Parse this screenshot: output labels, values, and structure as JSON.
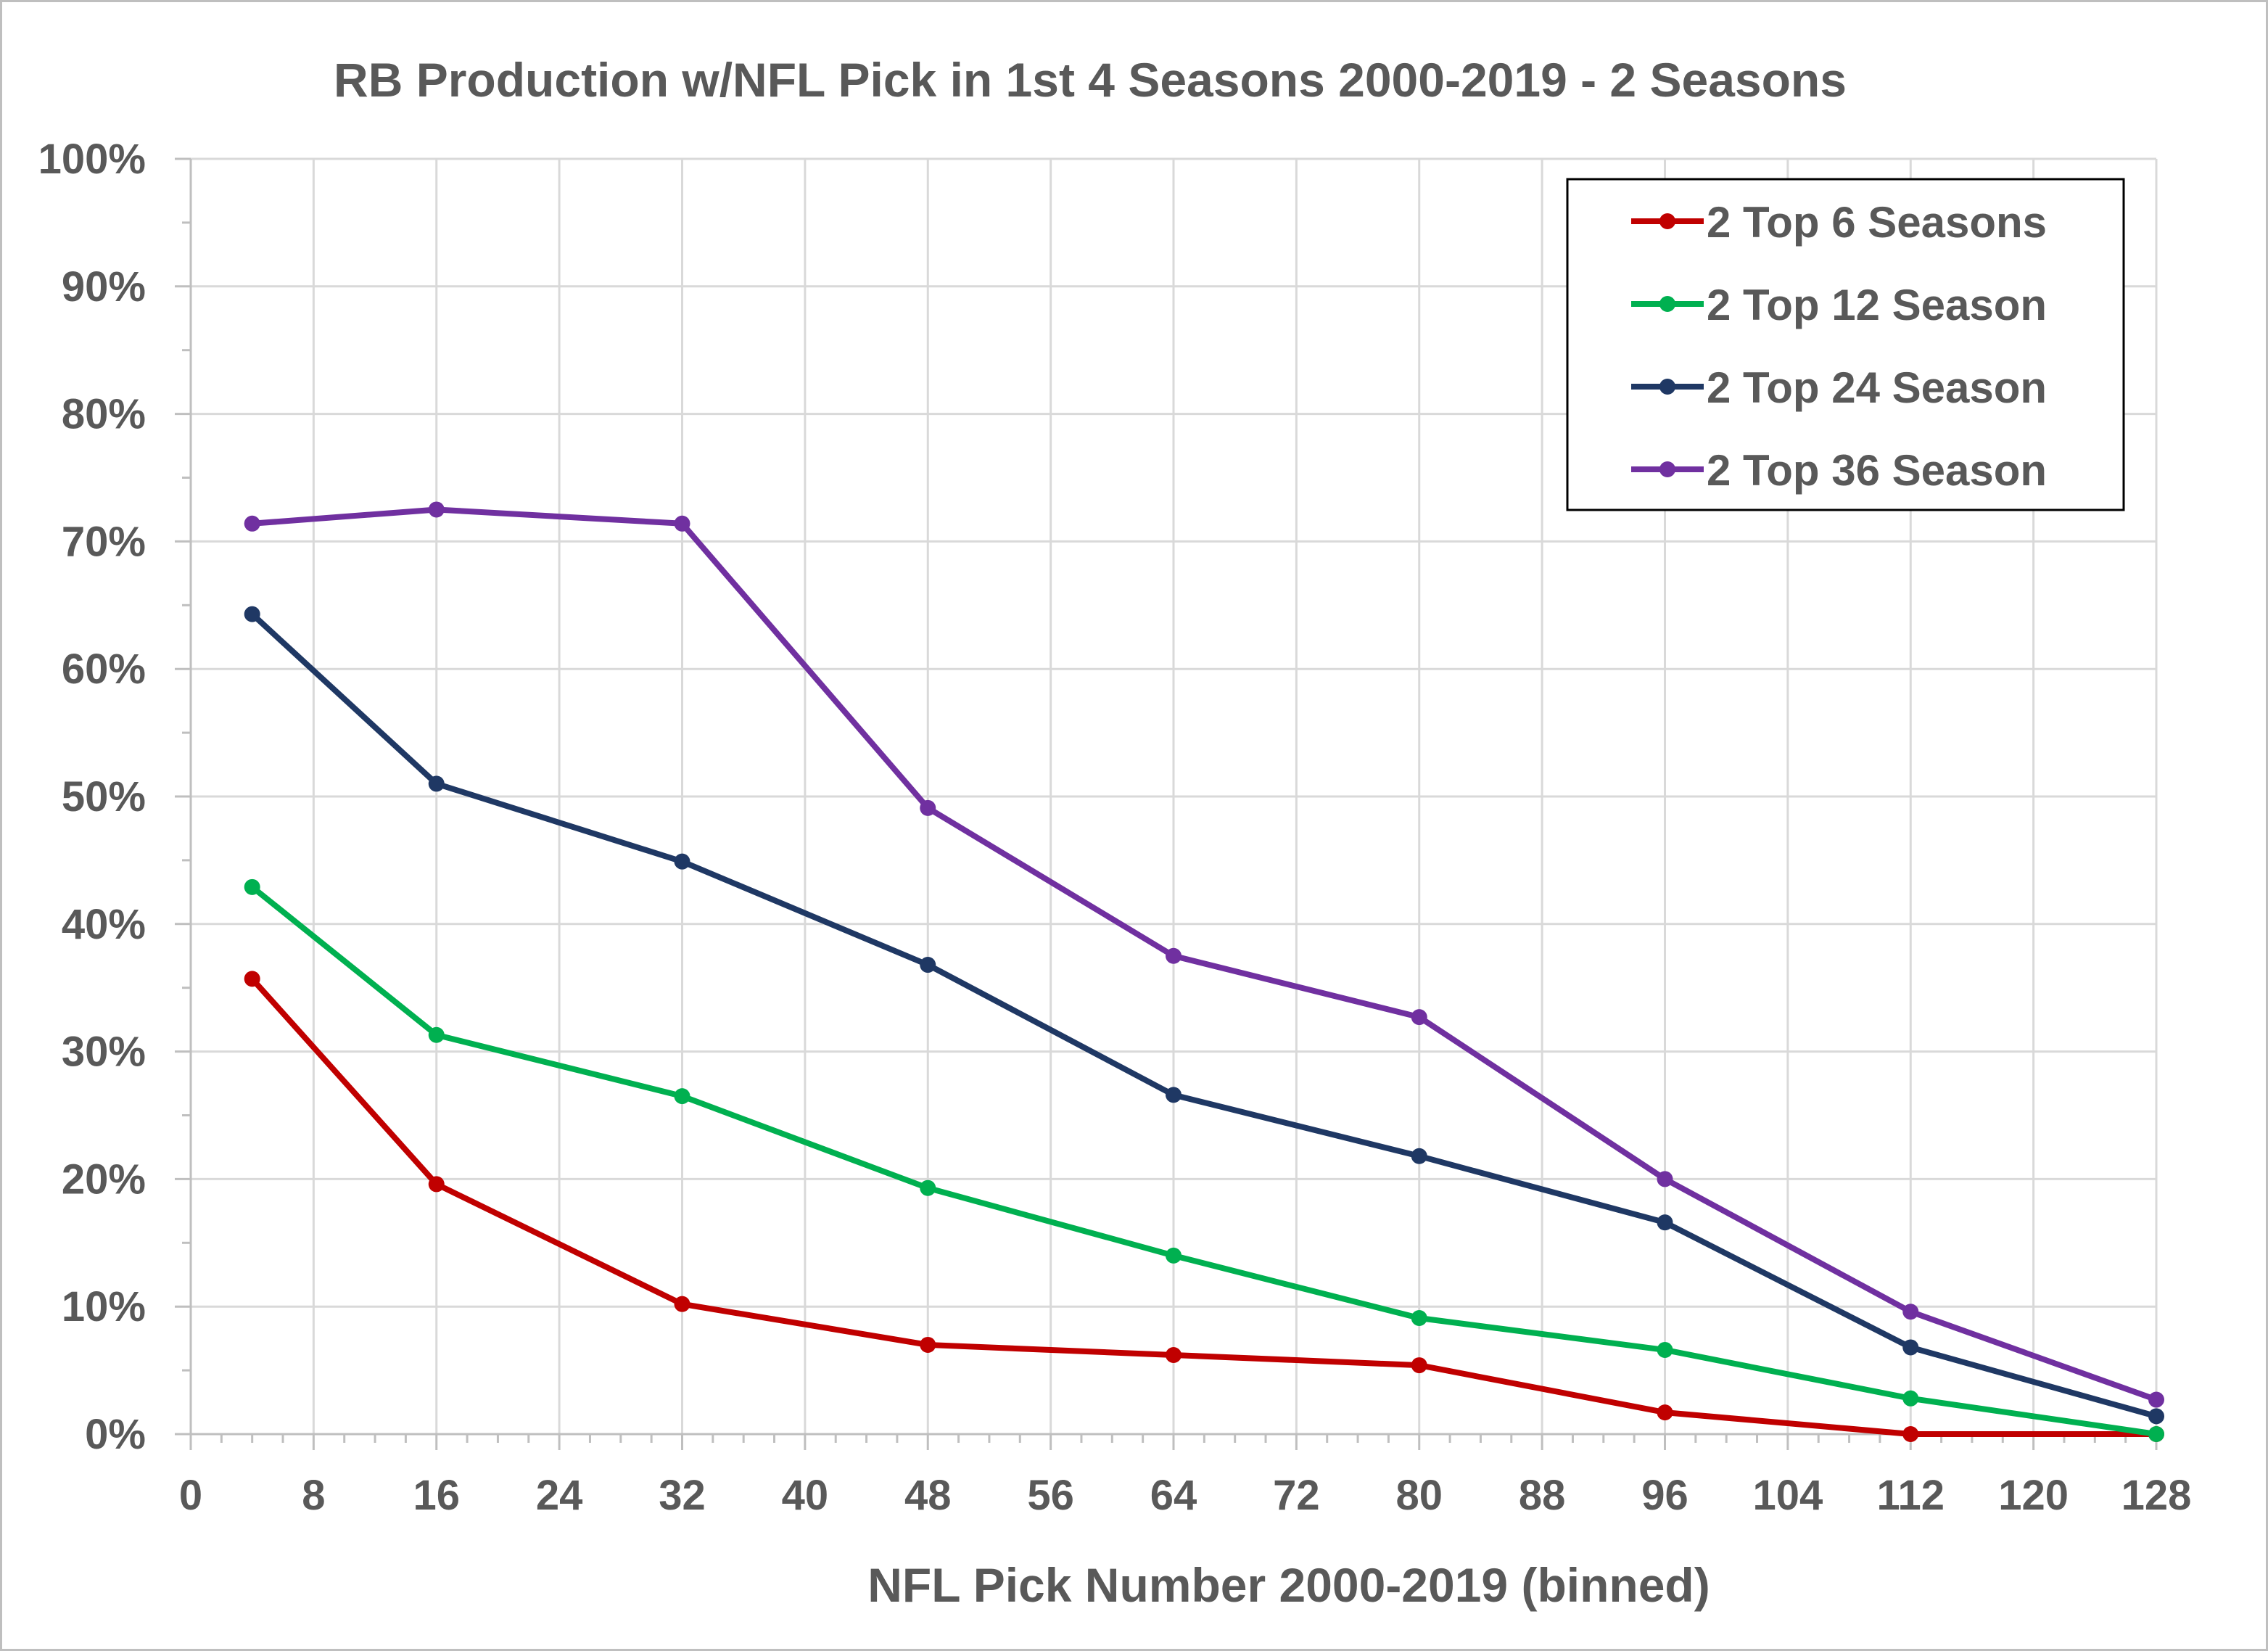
{
  "chart_data": {
    "type": "line",
    "title": "RB Production w/NFL Pick in 1st 4 Seasons 2000-2019 - 2 Seasons",
    "xlabel": "NFL Pick Number 2000-2019 (binned)",
    "ylabel": "",
    "xlim": [
      0,
      128
    ],
    "ylim": [
      0,
      1
    ],
    "x_ticks": [
      0,
      8,
      16,
      24,
      32,
      40,
      48,
      56,
      64,
      72,
      80,
      88,
      96,
      104,
      112,
      120,
      128
    ],
    "x_tick_labels": [
      "0",
      "8",
      "16",
      "24",
      "32",
      "40",
      "48",
      "56",
      "64",
      "72",
      "80",
      "88",
      "96",
      "104",
      "112",
      "120",
      "128"
    ],
    "y_ticks": [
      0,
      0.1,
      0.2,
      0.3,
      0.4,
      0.5,
      0.6,
      0.7,
      0.8,
      0.9,
      1.0
    ],
    "y_tick_labels": [
      "0%",
      "10%",
      "20%",
      "30%",
      "40%",
      "50%",
      "60%",
      "70%",
      "80%",
      "90%",
      "100%"
    ],
    "grid": true,
    "legend_position": "top-right",
    "x": [
      4,
      16,
      32,
      48,
      64,
      80,
      96,
      112,
      128
    ],
    "series": [
      {
        "name": "2 Top 6 Seasons",
        "color": "#c00000",
        "values": [
          0.357,
          0.196,
          0.102,
          0.07,
          0.062,
          0.054,
          0.017,
          0.0,
          0.0
        ]
      },
      {
        "name": "2 Top 12 Season",
        "color": "#00b050",
        "values": [
          0.429,
          0.313,
          0.265,
          0.193,
          0.14,
          0.091,
          0.066,
          0.028,
          0.0
        ]
      },
      {
        "name": "2 Top 24 Season",
        "color": "#1f3864",
        "values": [
          0.643,
          0.51,
          0.449,
          0.368,
          0.266,
          0.218,
          0.166,
          0.068,
          0.014
        ]
      },
      {
        "name": "2 Top 36 Season",
        "color": "#7030a0",
        "values": [
          0.714,
          0.725,
          0.714,
          0.491,
          0.375,
          0.327,
          0.2,
          0.096,
          0.027
        ]
      }
    ]
  }
}
